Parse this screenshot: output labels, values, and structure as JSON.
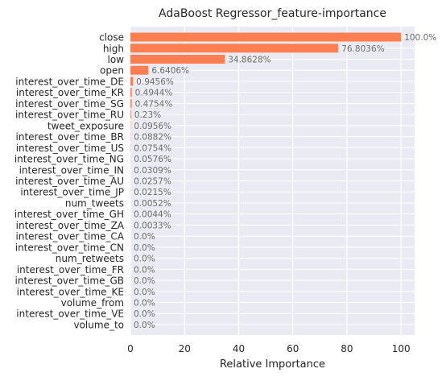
{
  "chart_data": {
    "type": "bar",
    "orientation": "horizontal",
    "title": "AdaBoost Regressor_feature-importance",
    "xlabel": "Relative Importance",
    "ylabel": "",
    "xlim": [
      0,
      105
    ],
    "xticks": [
      0,
      20,
      40,
      60,
      80,
      100
    ],
    "grid": true,
    "bar_color": "#ff7f50",
    "background_color": "#eaeaf2",
    "categories": [
      "close",
      "high",
      "low",
      "open",
      "interest_over_time_DE",
      "interest_over_time_KR",
      "interest_over_time_SG",
      "interest_over_time_RU",
      "tweet_exposure",
      "interest_over_time_BR",
      "interest_over_time_US",
      "interest_over_time_NG",
      "interest_over_time_IN",
      "interest_over_time_AU",
      "interest_over_time_JP",
      "num_tweets",
      "interest_over_time_GH",
      "interest_over_time_ZA",
      "interest_over_time_CA",
      "interest_over_time_CN",
      "num_retweets",
      "interest_over_time_FR",
      "interest_over_time_GB",
      "interest_over_time_KE",
      "volume_from",
      "interest_over_time_VE",
      "volume_to"
    ],
    "values": [
      100.0,
      76.8036,
      34.8628,
      6.6406,
      0.9456,
      0.4944,
      0.4754,
      0.23,
      0.0956,
      0.0882,
      0.0754,
      0.0576,
      0.0309,
      0.0257,
      0.0215,
      0.0052,
      0.0044,
      0.0033,
      0.0,
      0.0,
      0.0,
      0.0,
      0.0,
      0.0,
      0.0,
      0.0,
      0.0
    ],
    "data_labels": [
      "100.0%",
      "76.8036%",
      "34.8628%",
      "6.6406%",
      "0.9456%",
      "0.4944%",
      "0.4754%",
      "0.23%",
      "0.0956%",
      "0.0882%",
      "0.0754%",
      "0.0576%",
      "0.0309%",
      "0.0257%",
      "0.0215%",
      "0.0052%",
      "0.0044%",
      "0.0033%",
      "0.0%",
      "0.0%",
      "0.0%",
      "0.0%",
      "0.0%",
      "0.0%",
      "0.0%",
      "0.0%",
      "0.0%"
    ]
  }
}
